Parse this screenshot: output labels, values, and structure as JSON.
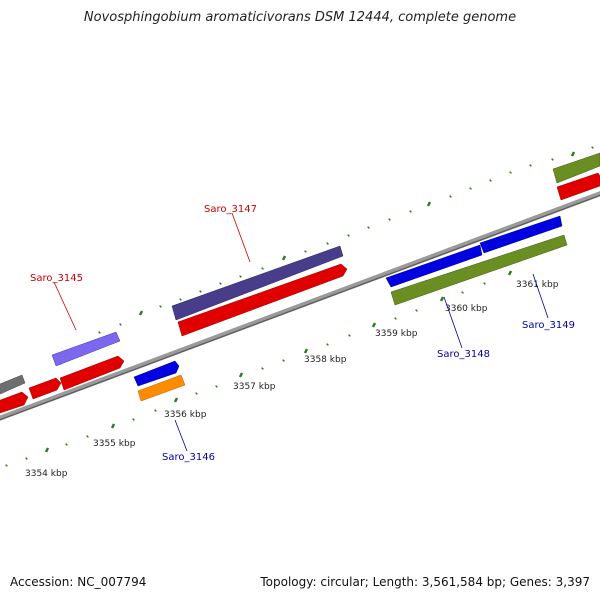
{
  "title": "Novosphingobium aromaticivorans DSM 12444, complete genome",
  "footer": {
    "accession": "Accession: NC_007794",
    "summary": "Topology: circular; Length: 3,561,584 bp; Genes: 3,397"
  },
  "colors": {
    "backbone": "#808080",
    "tick": "#2e7d1e",
    "label_red": "#cc0000",
    "label_blue": "#0000aa"
  },
  "kbp_labels": [
    "3354 kbp",
    "3355 kbp",
    "3356 kbp",
    "3357 kbp",
    "3358 kbp",
    "3359 kbp",
    "3360 kbp",
    "3361 kbp"
  ],
  "genes": [
    {
      "label": "Saro_3145",
      "color": "#7b68ee",
      "strand": "+"
    },
    {
      "label": "Saro_3146",
      "color": "#ff8c00",
      "strand": "-"
    },
    {
      "label": "Saro_3147",
      "color": "#483d8b",
      "strand": "+"
    },
    {
      "label": "Saro_3148",
      "color": "#6b8e23",
      "strand": "-"
    },
    {
      "label": "Saro_3149",
      "color": "#6b8e23",
      "strand": "-"
    }
  ]
}
